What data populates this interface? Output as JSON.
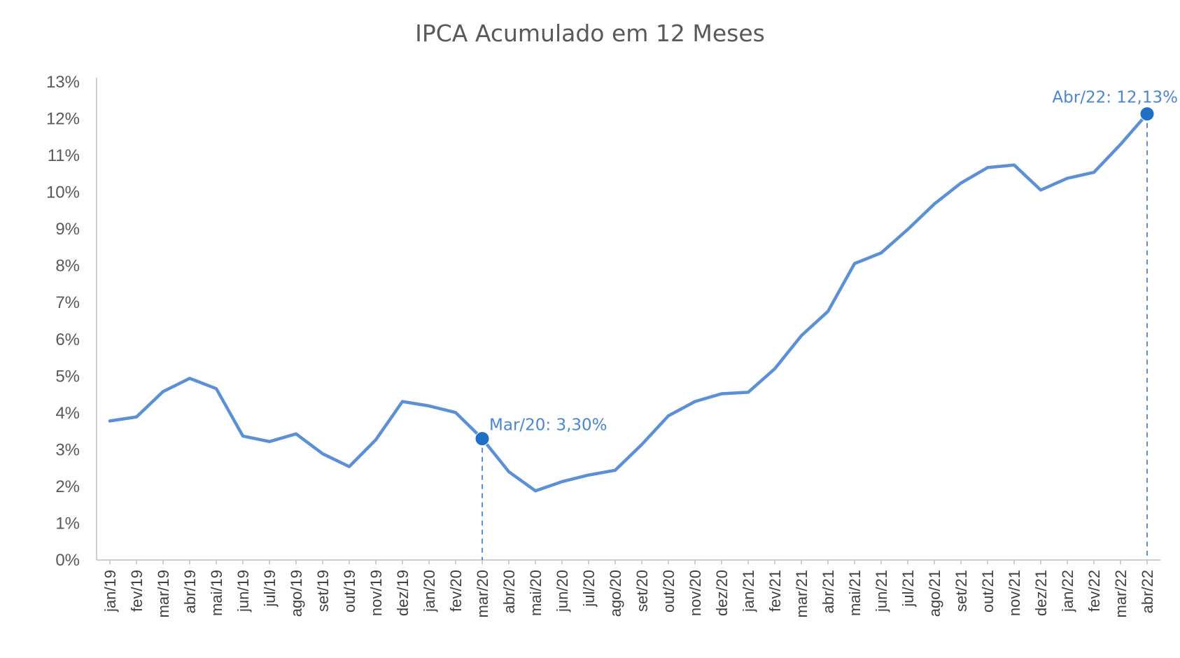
{
  "chart_data": {
    "type": "line",
    "title": "IPCA Acumulado em 12 Meses",
    "xlabel": "",
    "ylabel": "",
    "ylim": [
      0,
      13
    ],
    "y_tick_values": [
      0,
      1,
      2,
      3,
      4,
      5,
      6,
      7,
      8,
      9,
      10,
      11,
      12,
      13
    ],
    "y_tick_labels": [
      "0%",
      "1%",
      "2%",
      "3%",
      "4%",
      "5%",
      "6%",
      "7%",
      "8%",
      "9%",
      "10%",
      "11%",
      "12%",
      "13%"
    ],
    "grid": false,
    "line_color": "#5b8fd6",
    "marker_color": "#1f6fc4",
    "categories": [
      "jan/19",
      "fev/19",
      "mar/19",
      "abr/19",
      "mai/19",
      "jun/19",
      "jul/19",
      "ago/19",
      "set/19",
      "out/19",
      "nov/19",
      "dez/19",
      "jan/20",
      "fev/20",
      "mar/20",
      "abr/20",
      "mai/20",
      "jun/20",
      "jul/20",
      "ago/20",
      "set/20",
      "out/20",
      "nov/20",
      "dez/20",
      "jan/21",
      "fev/21",
      "mar/21",
      "abr/21",
      "mai/21",
      "jun/21",
      "jul/21",
      "ago/21",
      "set/21",
      "out/21",
      "nov/21",
      "dez/21",
      "jan/22",
      "fev/22",
      "mar/22",
      "abr/22"
    ],
    "series": [
      {
        "values": [
          3.78,
          3.89,
          4.58,
          4.94,
          4.66,
          3.37,
          3.22,
          3.43,
          2.89,
          2.54,
          3.27,
          4.31,
          4.19,
          4.01,
          3.3,
          2.4,
          1.88,
          2.13,
          2.31,
          2.44,
          3.14,
          3.92,
          4.31,
          4.52,
          4.56,
          5.2,
          6.1,
          6.76,
          8.06,
          8.35,
          8.99,
          9.68,
          10.25,
          10.67,
          10.74,
          10.06,
          10.38,
          10.54,
          11.3,
          12.13
        ]
      }
    ],
    "annotations": [
      {
        "category": "mar/20",
        "value": 3.3,
        "label": "Mar/20: 3,30%"
      },
      {
        "category": "abr/22",
        "value": 12.13,
        "label": "Abr/22: 12,13%"
      }
    ]
  }
}
